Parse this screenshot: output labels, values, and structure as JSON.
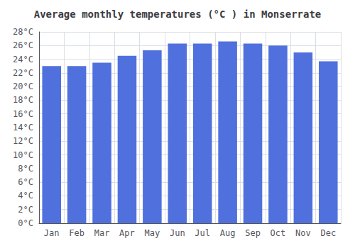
{
  "chart_data": {
    "type": "bar",
    "title": "Average monthly temperatures (°C ) in Monserrate",
    "categories": [
      "Jan",
      "Feb",
      "Mar",
      "Apr",
      "May",
      "Jun",
      "Jul",
      "Aug",
      "Sep",
      "Oct",
      "Nov",
      "Dec"
    ],
    "values": [
      23.0,
      23.0,
      23.5,
      24.5,
      25.3,
      26.3,
      26.3,
      26.6,
      26.3,
      26.0,
      25.0,
      23.7
    ],
    "ylim": [
      0,
      28
    ],
    "yticks": [
      {
        "value": 0,
        "label": "0°C"
      },
      {
        "value": 2,
        "label": "2°C"
      },
      {
        "value": 4,
        "label": "4°C"
      },
      {
        "value": 6,
        "label": "6°C"
      },
      {
        "value": 8,
        "label": "8°C"
      },
      {
        "value": 10,
        "label": "10°C"
      },
      {
        "value": 12,
        "label": "12°C"
      },
      {
        "value": 14,
        "label": "14°C"
      },
      {
        "value": 16,
        "label": "16°C"
      },
      {
        "value": 18,
        "label": "18°C"
      },
      {
        "value": 20,
        "label": "20°C"
      },
      {
        "value": 22,
        "label": "22°C"
      },
      {
        "value": 24,
        "label": "24°C"
      },
      {
        "value": 26,
        "label": "26°C"
      },
      {
        "value": 28,
        "label": "28°C"
      }
    ],
    "grid": true
  }
}
